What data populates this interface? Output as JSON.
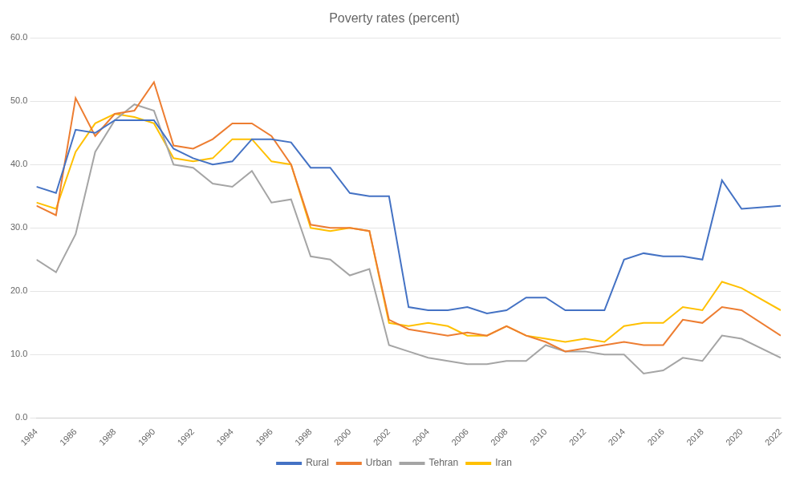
{
  "chart_data": {
    "type": "line",
    "title": "Poverty rates (percent)",
    "x": [
      1984,
      1985,
      1986,
      1987,
      1988,
      1989,
      1990,
      1991,
      1992,
      1993,
      1994,
      1995,
      1996,
      1997,
      1998,
      1999,
      2000,
      2001,
      2002,
      2003,
      2004,
      2005,
      2006,
      2007,
      2008,
      2009,
      2010,
      2011,
      2012,
      2013,
      2014,
      2015,
      2016,
      2017,
      2018,
      2019,
      2020,
      2022
    ],
    "series": [
      {
        "name": "Rural",
        "color": "#4472C4",
        "values": [
          36.5,
          35.5,
          45.5,
          45.0,
          47.0,
          47.0,
          47.0,
          42.5,
          41.0,
          40.0,
          40.5,
          44.0,
          44.0,
          43.5,
          39.5,
          39.5,
          35.5,
          35.0,
          35.0,
          17.5,
          17.0,
          17.0,
          17.5,
          16.5,
          17.0,
          19.0,
          19.0,
          17.0,
          17.0,
          17.0,
          25.0,
          26.0,
          25.5,
          25.5,
          25.0,
          37.5,
          33.0,
          33.5
        ]
      },
      {
        "name": "Urban",
        "color": "#ED7D31",
        "values": [
          33.5,
          32.0,
          50.5,
          44.5,
          48.0,
          48.5,
          53.0,
          43.0,
          42.5,
          44.0,
          46.5,
          46.5,
          44.5,
          40.0,
          30.5,
          30.0,
          30.0,
          29.5,
          15.5,
          14.0,
          13.5,
          13.0,
          13.5,
          13.0,
          14.5,
          13.0,
          12.0,
          10.5,
          11.0,
          11.5,
          12.0,
          11.5,
          11.5,
          15.5,
          15.0,
          17.5,
          17.0,
          13.0
        ]
      },
      {
        "name": "Tehran",
        "color": "#A5A5A5",
        "values": [
          25.0,
          23.0,
          29.0,
          42.0,
          47.0,
          49.5,
          48.5,
          40.0,
          39.5,
          37.0,
          36.5,
          39.0,
          34.0,
          34.5,
          25.5,
          25.0,
          22.5,
          23.5,
          11.5,
          10.5,
          9.5,
          9.0,
          8.5,
          8.5,
          9.0,
          9.0,
          11.5,
          10.5,
          10.5,
          10.0,
          10.0,
          7.0,
          7.5,
          9.5,
          9.0,
          13.0,
          12.5,
          9.5
        ]
      },
      {
        "name": "Iran",
        "color": "#FFC000",
        "values": [
          34.0,
          33.0,
          42.0,
          46.5,
          48.0,
          47.5,
          46.5,
          41.0,
          40.5,
          41.0,
          44.0,
          44.0,
          40.5,
          40.0,
          30.0,
          29.5,
          30.0,
          29.5,
          15.0,
          14.5,
          15.0,
          14.5,
          13.0,
          13.0,
          14.5,
          13.0,
          12.5,
          12.0,
          12.5,
          12.0,
          14.5,
          15.0,
          15.0,
          17.5,
          17.0,
          21.5,
          20.5,
          17.0
        ]
      }
    ],
    "xlim": [
      1984,
      2022
    ],
    "ylim": [
      0,
      60
    ],
    "xticks": [
      1984,
      1986,
      1988,
      1990,
      1992,
      1994,
      1996,
      1998,
      2000,
      2002,
      2004,
      2006,
      2008,
      2010,
      2012,
      2014,
      2016,
      2018,
      2020,
      2022
    ],
    "yticks": [
      {
        "value": 0,
        "label": "0.0"
      },
      {
        "value": 10,
        "label": "10.0"
      },
      {
        "value": 20,
        "label": "20.0"
      },
      {
        "value": 30,
        "label": "30.0"
      },
      {
        "value": 40,
        "label": "40.0"
      },
      {
        "value": 50,
        "label": "50.0"
      },
      {
        "value": 60,
        "label": "60.0"
      }
    ],
    "grid": true,
    "legend": "bottom"
  }
}
